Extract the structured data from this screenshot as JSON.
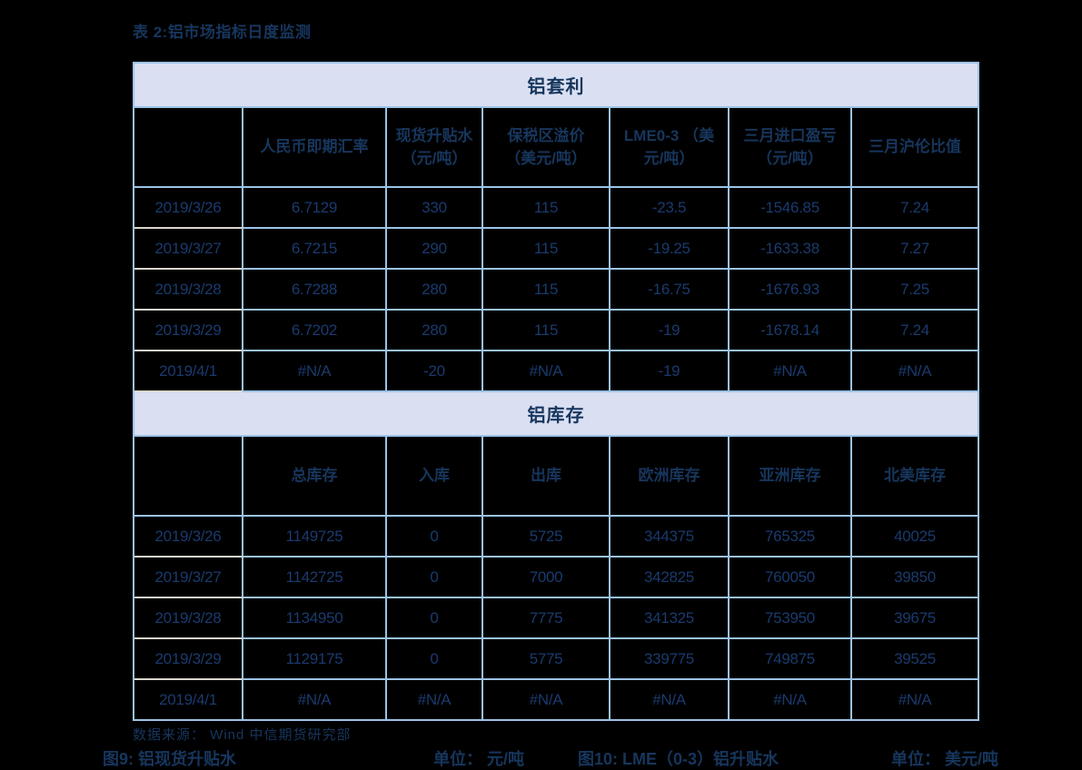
{
  "page": {
    "title": "表 2:铝市场指标日度监测"
  },
  "colors": {
    "background": "#000000",
    "text_navy": "#17365d",
    "data_navy": "#1a3a6e",
    "table_border_blue": "#9cc3e6",
    "band_fill_lavender": "#dadff2",
    "date_separator_gray": "#d9d6cc"
  },
  "table": {
    "sections": [
      {
        "band": "铝套利",
        "columns": [
          "",
          "人民币即期汇率",
          "现货升贴水\n（元/吨）",
          "保税区溢价\n（美元/吨）",
          "LME0-3 （美\n元/吨）",
          "三月进口盈亏\n（元/吨）",
          "三月沪伦比值"
        ],
        "rows": [
          [
            "2019/3/26",
            "6.7129",
            "330",
            "115",
            "-23.5",
            "-1546.85",
            "7.24"
          ],
          [
            "2019/3/27",
            "6.7215",
            "290",
            "115",
            "-19.25",
            "-1633.38",
            "7.27"
          ],
          [
            "2019/3/28",
            "6.7288",
            "280",
            "115",
            "-16.75",
            "-1676.93",
            "7.25"
          ],
          [
            "2019/3/29",
            "6.7202",
            "280",
            "115",
            "-19",
            "-1678.14",
            "7.24"
          ],
          [
            "2019/4/1",
            "#N/A",
            "-20",
            "#N/A",
            "-19",
            "#N/A",
            "#N/A"
          ]
        ]
      },
      {
        "band": "铝库存",
        "columns": [
          "",
          "总库存",
          "入库",
          "出库",
          "欧洲库存",
          "亚洲库存",
          "北美库存"
        ],
        "rows": [
          [
            "2019/3/26",
            "1149725",
            "0",
            "5725",
            "344375",
            "765325",
            "40025"
          ],
          [
            "2019/3/27",
            "1142725",
            "0",
            "7000",
            "342825",
            "760050",
            "39850"
          ],
          [
            "2019/3/28",
            "1134950",
            "0",
            "7775",
            "341325",
            "753950",
            "39675"
          ],
          [
            "2019/3/29",
            "1129175",
            "0",
            "5775",
            "339775",
            "749875",
            "39525"
          ],
          [
            "2019/4/1",
            "#N/A",
            "#N/A",
            "#N/A",
            "#N/A",
            "#N/A",
            "#N/A"
          ]
        ]
      }
    ]
  },
  "footer": {
    "source": "数据来源： Wind  中信期货研究部",
    "fig_left": "图9: 铝现货升贴水",
    "unit_left": "单位： 元/吨",
    "fig_right": "图10: LME（0-3）铝升贴水",
    "unit_right": "单位： 美元/吨"
  }
}
